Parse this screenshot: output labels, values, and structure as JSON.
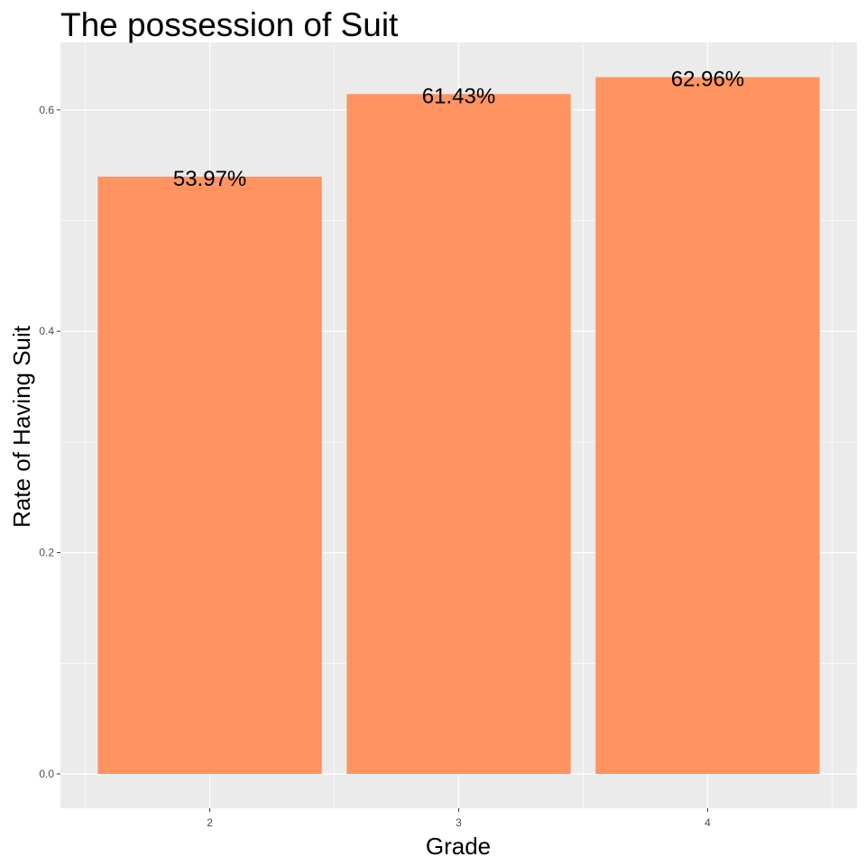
{
  "chart_data": {
    "type": "bar",
    "title": "The possession of Suit",
    "xlabel": "Grade",
    "ylabel": "Rate of Having Suit",
    "categories": [
      "2",
      "3",
      "4"
    ],
    "values": [
      0.5397,
      0.6143,
      0.6296
    ],
    "data_labels": [
      "53.97%",
      "61.43%",
      "62.96%"
    ],
    "yticks": [
      0.0,
      0.2,
      0.4,
      0.6
    ],
    "ytick_labels": [
      "0.0",
      "0.2",
      "0.4",
      "0.6"
    ],
    "ylim": [
      -0.031,
      0.661
    ],
    "grid": true,
    "colors": {
      "bar": "#ff9460",
      "panel": "#ebebeb",
      "grid_major": "#ffffff",
      "tick_text": "#4d4d4d"
    }
  }
}
